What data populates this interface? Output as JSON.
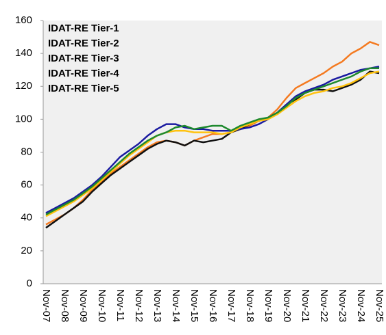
{
  "chart_data": {
    "type": "line",
    "categories": [
      "Nov-07",
      null,
      "Nov-08",
      null,
      "Nov-09",
      null,
      "Nov-10",
      null,
      "Nov-11",
      null,
      "Nov-12",
      null,
      "Nov-13",
      null,
      "Nov-14",
      null,
      "Nov-15",
      null,
      "Nov-16",
      null,
      "Nov-17",
      null,
      "Nov-18",
      null,
      "Nov-19",
      null,
      "Nov-20",
      null,
      "Nov-21",
      null,
      "Nov-22",
      null,
      "Nov-23",
      null,
      "Nov-24",
      null,
      "Nov-25"
    ],
    "series": [
      {
        "name": "IDAT-RE Tier-1",
        "color": "#f47a20",
        "values": [
          36,
          39,
          42,
          46,
          51,
          57,
          62,
          67,
          71,
          75,
          79,
          83,
          86,
          87,
          86,
          84,
          87,
          89,
          91,
          91,
          92,
          94,
          96,
          99,
          101,
          106,
          113,
          119,
          122,
          125,
          128,
          132,
          135,
          140,
          143,
          147,
          145
        ]
      },
      {
        "name": "IDAT-RE Tier-2",
        "color": "#111111",
        "values": [
          34,
          38,
          42,
          46,
          50,
          56,
          61,
          66,
          70,
          74,
          78,
          82,
          85,
          87,
          86,
          84,
          87,
          86,
          87,
          88,
          92,
          94,
          97,
          99,
          101,
          104,
          109,
          112,
          116,
          118,
          118,
          117,
          119,
          121,
          124,
          129,
          128
        ]
      },
      {
        "name": "IDAT-RE Tier-3",
        "color": "#1a1aa0",
        "values": [
          43,
          46,
          49,
          52,
          56,
          60,
          65,
          71,
          77,
          81,
          85,
          90,
          94,
          97,
          97,
          95,
          94,
          94,
          93,
          93,
          93,
          94,
          95,
          97,
          100,
          104,
          109,
          114,
          117,
          119,
          121,
          124,
          126,
          128,
          130,
          131,
          132
        ]
      },
      {
        "name": "IDAT-RE Tier-4",
        "color": "#ffc20e",
        "values": [
          41,
          44,
          47,
          50,
          54,
          58,
          63,
          68,
          73,
          78,
          82,
          86,
          90,
          92,
          93,
          93,
          92,
          92,
          92,
          91,
          92,
          95,
          97,
          99,
          100,
          103,
          107,
          111,
          114,
          116,
          117,
          119,
          120,
          122,
          125,
          128,
          129
        ]
      },
      {
        "name": "IDAT-RE Tier-5",
        "color": "#1e8a2e",
        "values": [
          42,
          45,
          48,
          51,
          55,
          59,
          64,
          69,
          74,
          79,
          83,
          87,
          90,
          92,
          95,
          96,
          94,
          95,
          96,
          96,
          93,
          96,
          98,
          100,
          101,
          104,
          108,
          113,
          116,
          118,
          120,
          122,
          124,
          126,
          129,
          131,
          131
        ]
      }
    ],
    "ylim": [
      0,
      160
    ],
    "yticks": [
      0,
      20,
      40,
      60,
      80,
      100,
      120,
      140,
      160
    ],
    "grid": false,
    "legend": "upper-left"
  }
}
